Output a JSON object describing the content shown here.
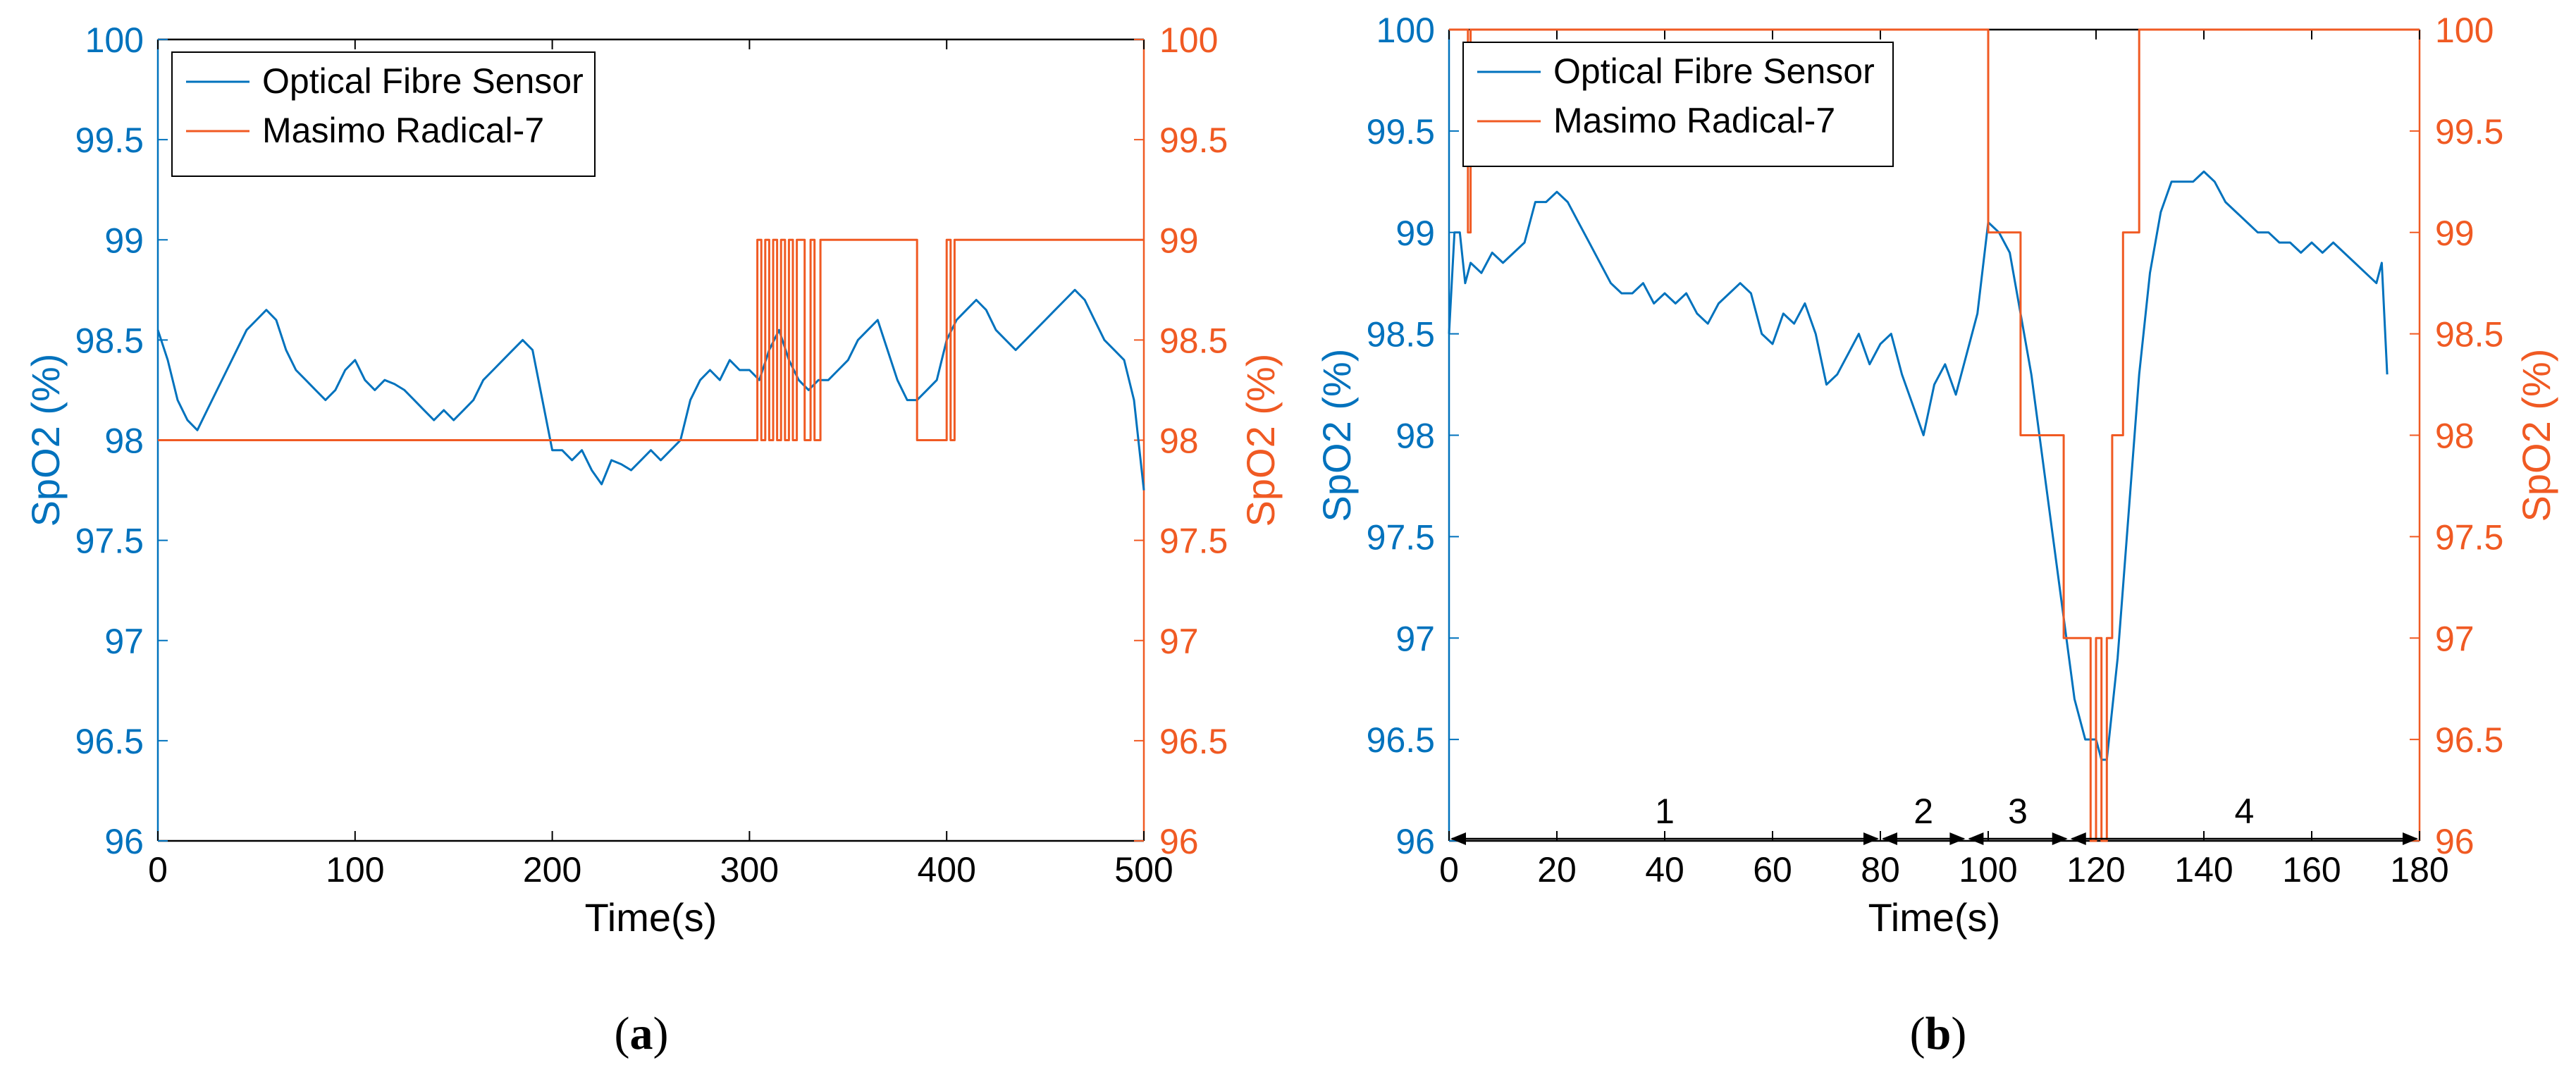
{
  "chart_data": [
    {
      "panel": "a",
      "caption_letter": "a",
      "type": "line",
      "xlabel": "Time(s)",
      "ylabel_left": "SpO2 (%)",
      "ylabel_right": "SpO2 (%)",
      "xlim": [
        0,
        500
      ],
      "ylim_left": [
        96,
        100
      ],
      "ylim_right": [
        96,
        100
      ],
      "xticks": [
        0,
        100,
        200,
        300,
        400,
        500
      ],
      "yticks_left": [
        96,
        96.5,
        97,
        97.5,
        98,
        98.5,
        99,
        99.5,
        100
      ],
      "yticks_right": [
        96,
        96.5,
        97,
        97.5,
        98,
        98.5,
        99,
        99.5,
        100
      ],
      "legend_position": "top-left",
      "grid": false,
      "series": [
        {
          "name": "Optical Fibre Sensor",
          "color": "#0072BD",
          "axis": "left",
          "x": [
            0,
            5,
            10,
            15,
            20,
            25,
            30,
            35,
            40,
            45,
            50,
            55,
            60,
            65,
            70,
            75,
            80,
            85,
            90,
            95,
            100,
            105,
            110,
            115,
            120,
            125,
            130,
            135,
            140,
            145,
            150,
            155,
            160,
            165,
            170,
            175,
            180,
            185,
            190,
            195,
            200,
            205,
            210,
            215,
            220,
            225,
            230,
            235,
            240,
            245,
            250,
            255,
            260,
            265,
            270,
            275,
            280,
            285,
            290,
            295,
            300,
            305,
            310,
            315,
            320,
            325,
            330,
            335,
            340,
            345,
            350,
            355,
            360,
            365,
            370,
            375,
            380,
            385,
            390,
            395,
            400,
            405,
            410,
            415,
            420,
            425,
            430,
            435,
            440,
            445,
            450,
            455,
            460,
            465,
            470,
            475,
            480,
            485,
            490,
            495,
            500
          ],
          "y": [
            98.55,
            98.4,
            98.2,
            98.1,
            98.05,
            98.15,
            98.25,
            98.35,
            98.45,
            98.55,
            98.6,
            98.65,
            98.6,
            98.45,
            98.35,
            98.3,
            98.25,
            98.2,
            98.25,
            98.35,
            98.4,
            98.3,
            98.25,
            98.3,
            98.28,
            98.25,
            98.2,
            98.15,
            98.1,
            98.15,
            98.1,
            98.15,
            98.2,
            98.3,
            98.35,
            98.4,
            98.45,
            98.5,
            98.45,
            98.2,
            97.95,
            97.95,
            97.9,
            97.95,
            97.85,
            97.78,
            97.9,
            97.88,
            97.85,
            97.9,
            97.95,
            97.9,
            97.95,
            98.0,
            98.2,
            98.3,
            98.35,
            98.3,
            98.4,
            98.35,
            98.35,
            98.3,
            98.45,
            98.55,
            98.4,
            98.3,
            98.25,
            98.3,
            98.3,
            98.35,
            98.4,
            98.5,
            98.55,
            98.6,
            98.45,
            98.3,
            98.2,
            98.2,
            98.25,
            98.3,
            98.5,
            98.6,
            98.65,
            98.7,
            98.65,
            98.55,
            98.5,
            98.45,
            98.5,
            98.55,
            98.6,
            98.65,
            98.7,
            98.75,
            98.7,
            98.6,
            98.5,
            98.45,
            98.4,
            98.2,
            97.75
          ]
        },
        {
          "name": "Masimo Radical-7",
          "color": "#F05A23",
          "axis": "right",
          "x": [
            0,
            304,
            304,
            306,
            306,
            308,
            308,
            310,
            310,
            312,
            312,
            314,
            314,
            316,
            316,
            318,
            318,
            320,
            320,
            322,
            322,
            324,
            324,
            328,
            328,
            331,
            331,
            333,
            333,
            336,
            336,
            338,
            338,
            385,
            385,
            400,
            400,
            402,
            402,
            404,
            404,
            500
          ],
          "y": [
            98,
            98,
            99,
            99,
            98,
            98,
            99,
            99,
            98,
            98,
            99,
            99,
            98,
            98,
            99,
            99,
            98,
            98,
            99,
            99,
            98,
            98,
            99,
            99,
            98,
            98,
            99,
            99,
            98,
            98,
            99,
            99,
            99,
            99,
            98,
            98,
            99,
            99,
            98,
            98,
            99,
            99
          ]
        }
      ]
    },
    {
      "panel": "b",
      "caption_letter": "b",
      "type": "line",
      "xlabel": "Time(s)",
      "ylabel_left": "SpO2 (%)",
      "ylabel_right": "SpO2 (%)",
      "xlim": [
        0,
        180
      ],
      "ylim_left": [
        96,
        100
      ],
      "ylim_right": [
        96,
        100
      ],
      "xticks": [
        0,
        20,
        40,
        60,
        80,
        100,
        120,
        140,
        160,
        180
      ],
      "yticks_left": [
        96,
        96.5,
        97,
        97.5,
        98,
        98.5,
        99,
        99.5,
        100
      ],
      "yticks_right": [
        96,
        96.5,
        97,
        97.5,
        98,
        98.5,
        99,
        99.5,
        100
      ],
      "legend_position": "top-left",
      "grid": false,
      "series": [
        {
          "name": "Optical Fibre Sensor",
          "color": "#0072BD",
          "axis": "left",
          "x": [
            0,
            1,
            2,
            3,
            4,
            6,
            8,
            10,
            12,
            14,
            16,
            18,
            20,
            22,
            24,
            26,
            28,
            30,
            32,
            34,
            36,
            38,
            40,
            42,
            44,
            46,
            48,
            50,
            52,
            54,
            56,
            58,
            60,
            62,
            64,
            66,
            68,
            70,
            72,
            74,
            76,
            78,
            80,
            82,
            84,
            86,
            88,
            90,
            92,
            94,
            96,
            98,
            100,
            102,
            104,
            106,
            108,
            110,
            112,
            114,
            116,
            118,
            120,
            121,
            122,
            124,
            126,
            128,
            130,
            132,
            134,
            136,
            138,
            140,
            142,
            144,
            146,
            148,
            150,
            152,
            154,
            156,
            158,
            160,
            162,
            164,
            166,
            168,
            170,
            172,
            173,
            174
          ],
          "y": [
            98.5,
            99.0,
            99.0,
            98.75,
            98.85,
            98.8,
            98.9,
            98.85,
            98.9,
            98.95,
            99.15,
            99.15,
            99.2,
            99.15,
            99.05,
            98.95,
            98.85,
            98.75,
            98.7,
            98.7,
            98.75,
            98.65,
            98.7,
            98.65,
            98.7,
            98.6,
            98.55,
            98.65,
            98.7,
            98.75,
            98.7,
            98.5,
            98.45,
            98.6,
            98.55,
            98.65,
            98.5,
            98.25,
            98.3,
            98.4,
            98.5,
            98.35,
            98.45,
            98.5,
            98.3,
            98.15,
            98.0,
            98.25,
            98.35,
            98.2,
            98.4,
            98.6,
            99.05,
            99.0,
            98.9,
            98.6,
            98.3,
            97.9,
            97.5,
            97.1,
            96.7,
            96.5,
            96.5,
            96.4,
            96.4,
            96.9,
            97.6,
            98.3,
            98.8,
            99.1,
            99.25,
            99.25,
            99.25,
            99.3,
            99.25,
            99.15,
            99.1,
            99.05,
            99.0,
            99.0,
            98.95,
            98.95,
            98.9,
            98.95,
            98.9,
            98.95,
            98.9,
            98.85,
            98.8,
            98.75,
            98.85,
            98.3
          ]
        },
        {
          "name": "Masimo Radical-7",
          "color": "#F05A23",
          "axis": "right",
          "x": [
            0,
            3.5,
            3.5,
            4,
            4,
            100,
            100,
            102,
            102,
            106,
            106,
            112,
            112,
            114,
            114,
            119,
            119,
            120,
            120,
            121,
            121,
            122,
            122,
            123,
            123,
            125,
            125,
            128,
            128,
            180
          ],
          "y": [
            100,
            100,
            99,
            99,
            100,
            100,
            99,
            99,
            99,
            99,
            98,
            98,
            98,
            98,
            97,
            97,
            96,
            96,
            97,
            97,
            96,
            96,
            97,
            97,
            98,
            98,
            99,
            99,
            100,
            100
          ]
        }
      ],
      "segments": [
        {
          "label": "1",
          "x_start": 0,
          "x_end": 80
        },
        {
          "label": "2",
          "x_start": 80,
          "x_end": 96
        },
        {
          "label": "3",
          "x_start": 96,
          "x_end": 115
        },
        {
          "label": "4",
          "x_start": 115,
          "x_end": 180
        }
      ]
    }
  ],
  "colors": {
    "blue": "#0072BD",
    "orange": "#F05A23",
    "axis": "#000000"
  }
}
